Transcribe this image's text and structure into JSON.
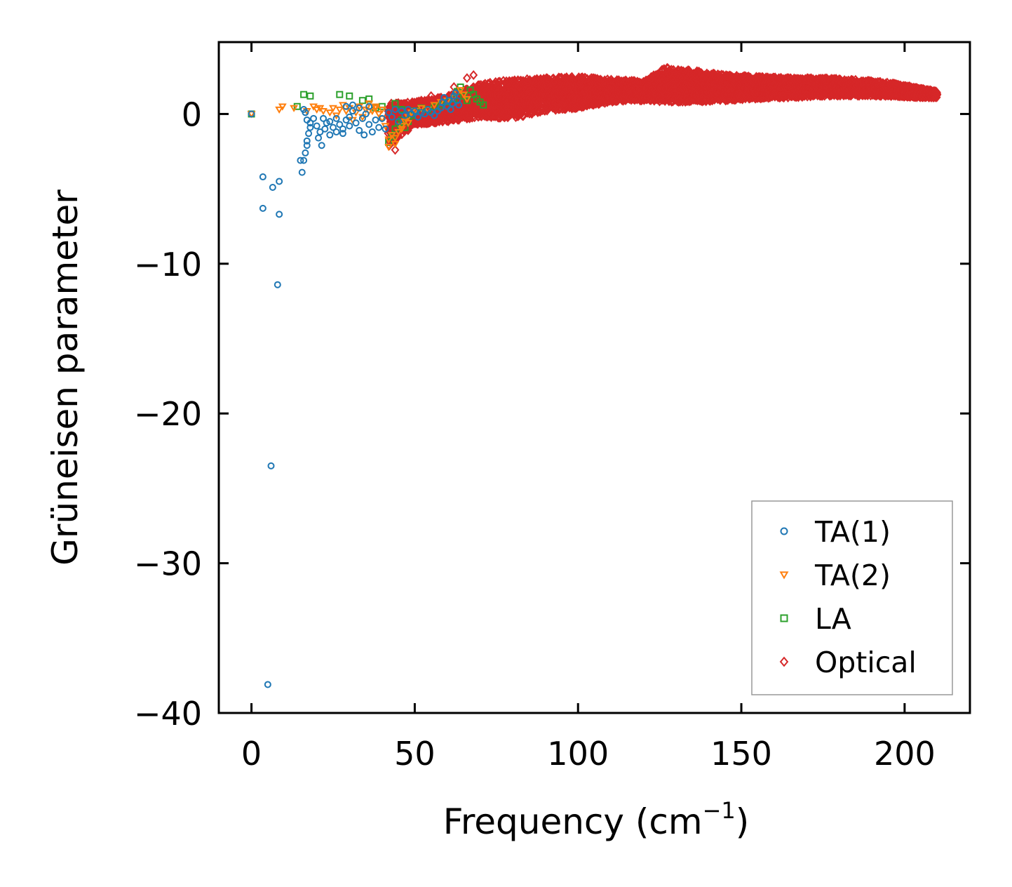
{
  "chart_data": {
    "type": "scatter",
    "title": "",
    "xlabel": "Frequency (cm",
    "xlabel_sup": "−1",
    "xlabel_close": ")",
    "ylabel": "Grüneisen parameter",
    "xlim": [
      -10,
      220
    ],
    "ylim": [
      -40,
      4.8
    ],
    "xticks": [
      0,
      50,
      100,
      150,
      200
    ],
    "xtick_labels": [
      "0",
      "50",
      "100",
      "150",
      "200"
    ],
    "yticks": [
      0,
      -10,
      -20,
      -30,
      -40
    ],
    "ytick_labels": [
      "0",
      "−10",
      "−20",
      "−30",
      "−40"
    ],
    "grid": false,
    "legend_position": "lower-right",
    "series": [
      {
        "name": "TA(1)",
        "marker": "circle",
        "color": "#1f77b4",
        "points": [
          [
            0,
            0
          ],
          [
            3.5,
            -4.2
          ],
          [
            3.5,
            -6.3
          ],
          [
            6.5,
            -4.9
          ],
          [
            8.5,
            -4.5
          ],
          [
            8.5,
            -6.7
          ],
          [
            8,
            -11.4
          ],
          [
            6,
            -23.5
          ],
          [
            5,
            -38.1
          ],
          [
            15,
            -3.1
          ],
          [
            15.5,
            -3.9
          ],
          [
            16,
            -3.1
          ],
          [
            16.5,
            -2.6
          ],
          [
            17,
            -2.1
          ],
          [
            17,
            -1.8
          ],
          [
            17.5,
            -1.3
          ],
          [
            18,
            -0.9
          ],
          [
            17,
            -0.4
          ],
          [
            16.5,
            0.1
          ],
          [
            16,
            0.3
          ],
          [
            18,
            -0.6
          ],
          [
            19,
            -0.3
          ],
          [
            20,
            -0.8
          ],
          [
            20.5,
            -1.6
          ],
          [
            21,
            -1.2
          ],
          [
            21.5,
            -2.1
          ],
          [
            22,
            -0.3
          ],
          [
            22.5,
            -1.0
          ],
          [
            23,
            -0.6
          ],
          [
            24,
            -1.4
          ],
          [
            25,
            -0.9
          ],
          [
            26,
            -1.2
          ],
          [
            27,
            -0.7
          ],
          [
            28,
            -1.0
          ],
          [
            29,
            -0.4
          ],
          [
            30,
            -0.2
          ],
          [
            30,
            -0.8
          ],
          [
            31,
            0.2
          ],
          [
            32,
            -0.6
          ],
          [
            33,
            -1.1
          ],
          [
            34,
            -0.3
          ],
          [
            34.5,
            -1.4
          ],
          [
            35,
            0.0
          ],
          [
            36,
            -0.7
          ],
          [
            37,
            -1.2
          ],
          [
            38,
            -0.4
          ],
          [
            39,
            -0.9
          ],
          [
            40,
            -0.3
          ],
          [
            41,
            -1.0
          ],
          [
            42,
            0.1
          ],
          [
            43,
            -0.2
          ],
          [
            44,
            0.3
          ],
          [
            45,
            -0.5
          ],
          [
            46,
            0.2
          ],
          [
            47,
            -0.1
          ],
          [
            48,
            0.3
          ],
          [
            49,
            0.0
          ],
          [
            50,
            0.2
          ],
          [
            51,
            -0.2
          ],
          [
            52,
            0.1
          ],
          [
            53,
            0.0
          ],
          [
            54,
            0.3
          ],
          [
            55,
            0.1
          ],
          [
            56,
            -0.1
          ],
          [
            57,
            0.2
          ],
          [
            58,
            0.4
          ],
          [
            58.5,
            0.8
          ],
          [
            59,
            1.1
          ],
          [
            60,
            0.5
          ],
          [
            60.5,
            0.9
          ],
          [
            61,
            0.3
          ],
          [
            61.5,
            0.7
          ],
          [
            62,
            1.2
          ],
          [
            62.5,
            1.4
          ],
          [
            63,
            0.9
          ],
          [
            63.5,
            0.6
          ],
          [
            29,
            0.5
          ],
          [
            31,
            0.6
          ],
          [
            33,
            0.4
          ],
          [
            36,
            0.5
          ],
          [
            28,
            -1.3
          ],
          [
            26,
            -0.3
          ],
          [
            24,
            -0.5
          ]
        ]
      },
      {
        "name": "TA(2)",
        "marker": "triangle-down",
        "color": "#ff7f0e",
        "points": [
          [
            0,
            0
          ],
          [
            8.5,
            0.3
          ],
          [
            9.5,
            0.5
          ],
          [
            13,
            0.4
          ],
          [
            17,
            0.2
          ],
          [
            19,
            0.5
          ],
          [
            20,
            0.3
          ],
          [
            21,
            0.4
          ],
          [
            22,
            0.2
          ],
          [
            24,
            0.1
          ],
          [
            25,
            0.4
          ],
          [
            26,
            -0.1
          ],
          [
            27,
            0.3
          ],
          [
            28,
            0.6
          ],
          [
            29,
            0.2
          ],
          [
            30,
            0.4
          ],
          [
            31,
            -0.4
          ],
          [
            32,
            0.1
          ],
          [
            33,
            0.5
          ],
          [
            34,
            -0.2
          ],
          [
            35,
            0.3
          ],
          [
            36,
            0.7
          ],
          [
            37,
            0.2
          ],
          [
            38,
            0.5
          ],
          [
            39,
            0.0
          ],
          [
            40,
            0.3
          ],
          [
            41,
            -0.8
          ],
          [
            42,
            -1.7
          ],
          [
            43,
            -1.4
          ],
          [
            44,
            -2.0
          ],
          [
            45,
            -1.2
          ],
          [
            46,
            -0.8
          ],
          [
            47,
            -0.5
          ],
          [
            48,
            -0.2
          ],
          [
            49,
            0.1
          ],
          [
            50,
            0.2
          ],
          [
            52,
            0.4
          ],
          [
            54,
            0.3
          ],
          [
            56,
            0.6
          ],
          [
            58,
            0.8
          ],
          [
            60,
            0.9
          ],
          [
            62,
            1.1
          ],
          [
            63,
            1.4
          ],
          [
            64,
            1.6
          ],
          [
            65,
            1.3
          ],
          [
            66,
            1.0
          ],
          [
            42,
            -2.2
          ],
          [
            44,
            -1.6
          ],
          [
            46,
            -1.0
          ],
          [
            48,
            -0.6
          ],
          [
            38,
            0.4
          ],
          [
            40,
            -0.3
          ],
          [
            36,
            0.2
          ]
        ]
      },
      {
        "name": "LA",
        "marker": "square",
        "color": "#2ca02c",
        "points": [
          [
            0,
            0
          ],
          [
            14,
            0.5
          ],
          [
            16,
            1.3
          ],
          [
            18,
            1.2
          ],
          [
            27,
            1.3
          ],
          [
            30,
            1.2
          ],
          [
            34,
            0.9
          ],
          [
            36,
            1.0
          ],
          [
            38,
            0.4
          ],
          [
            40,
            0.5
          ],
          [
            42,
            -1.9
          ],
          [
            43,
            -1.5
          ],
          [
            44,
            -1.0
          ],
          [
            45,
            -0.6
          ],
          [
            46,
            -0.4
          ],
          [
            47,
            -0.9
          ],
          [
            48,
            -0.5
          ],
          [
            49,
            -0.1
          ],
          [
            50,
            0.2
          ],
          [
            52,
            0.4
          ],
          [
            54,
            0.3
          ],
          [
            56,
            0.5
          ],
          [
            58,
            0.6
          ],
          [
            60,
            0.8
          ],
          [
            62,
            1.0
          ],
          [
            63,
            1.5
          ],
          [
            64,
            1.8
          ],
          [
            65,
            1.2
          ],
          [
            66,
            0.9
          ],
          [
            67,
            1.6
          ],
          [
            68,
            1.3
          ],
          [
            69,
            1.0
          ],
          [
            70,
            0.8
          ],
          [
            71,
            0.6
          ],
          [
            44,
            0.7
          ],
          [
            46,
            0.3
          ]
        ]
      },
      {
        "name": "Optical",
        "marker": "diamond",
        "color": "#d62728",
        "bands": [
          [
            42,
            -1.2,
            -2.1,
            0.7
          ],
          [
            50,
            0.0,
            -0.7,
            0.8
          ],
          [
            60,
            0.3,
            -0.5,
            1.2
          ],
          [
            70,
            0.8,
            -0.2,
            2.0
          ],
          [
            80,
            0.9,
            -0.3,
            2.3
          ],
          [
            90,
            1.2,
            0.2,
            2.4
          ],
          [
            100,
            1.4,
            0.4,
            2.5
          ],
          [
            110,
            1.5,
            0.8,
            2.3
          ],
          [
            120,
            1.5,
            0.9,
            2.2
          ],
          [
            127,
            1.7,
            0.8,
            3.1
          ],
          [
            135,
            1.8,
            0.8,
            2.9
          ],
          [
            145,
            1.8,
            0.9,
            2.6
          ],
          [
            155,
            1.8,
            1.0,
            2.5
          ],
          [
            165,
            1.8,
            1.1,
            2.4
          ],
          [
            175,
            1.8,
            1.2,
            2.4
          ],
          [
            185,
            1.8,
            1.2,
            2.3
          ],
          [
            195,
            1.6,
            1.2,
            2.1
          ],
          [
            205,
            1.4,
            1.1,
            1.7
          ],
          [
            210,
            1.3,
            1.1,
            1.5
          ]
        ],
        "points": [
          [
            44,
            -2.4
          ],
          [
            47,
            0.6
          ],
          [
            52,
            0.9
          ],
          [
            55,
            1.2
          ],
          [
            58,
            1.0
          ],
          [
            62,
            1.8
          ],
          [
            66,
            2.4
          ],
          [
            68,
            2.6
          ],
          [
            72,
            1.9
          ],
          [
            75,
            0.2
          ],
          [
            78,
            0.5
          ],
          [
            82,
            1.8
          ],
          [
            85,
            1.5
          ],
          [
            88,
            0.8
          ],
          [
            95,
            0.6
          ],
          [
            105,
            0.7
          ],
          [
            118,
            1.0
          ],
          [
            126,
            2.9
          ],
          [
            128,
            2.7
          ],
          [
            132,
            2.4
          ],
          [
            150,
            1.2
          ],
          [
            170,
            1.3
          ],
          [
            190,
            1.4
          ]
        ]
      }
    ]
  }
}
